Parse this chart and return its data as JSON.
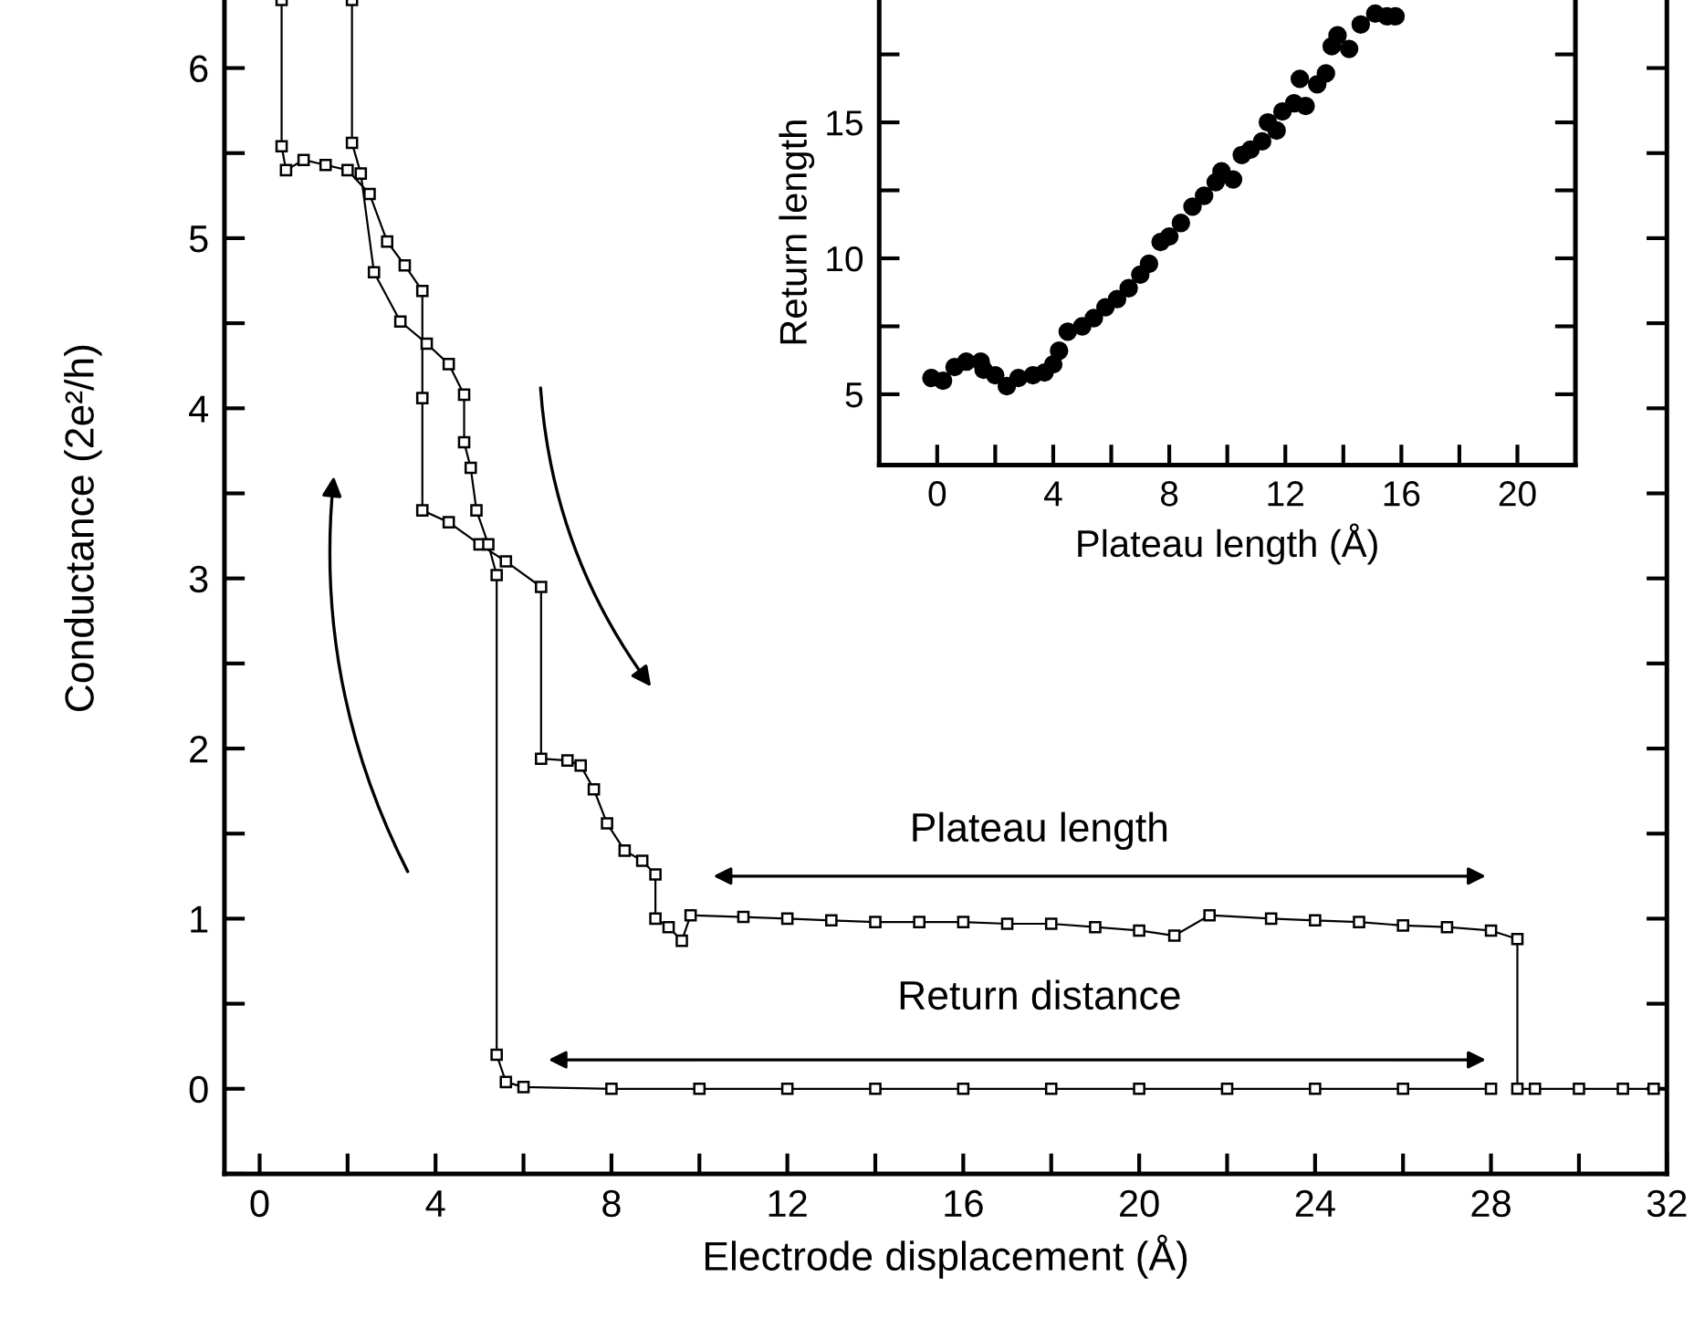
{
  "chart_data": [
    {
      "type": "line",
      "xlabel": "Electrode displacement (Å)",
      "ylabel": "Conductance (2e²/h)",
      "marker": "square",
      "line_style": "solid",
      "grid": false,
      "legend": false,
      "xlim": [
        -0.8,
        32
      ],
      "ylim": [
        -0.5,
        6.4
      ],
      "xticks": [
        0,
        {
          "value": 2,
          "label": null
        },
        4,
        {
          "value": 6,
          "label": null
        },
        8,
        {
          "value": 10,
          "label": null
        },
        12,
        {
          "value": 14,
          "label": null
        },
        16,
        {
          "value": 18,
          "label": null
        },
        20,
        {
          "value": 22,
          "label": null
        },
        24,
        {
          "value": 26,
          "label": null
        },
        28,
        {
          "value": 30,
          "label": null
        },
        32
      ],
      "yticks": [
        {
          "value": -0.5,
          "label": null
        },
        0,
        {
          "value": 0.5,
          "label": null
        },
        1,
        {
          "value": 1.5,
          "label": null
        },
        2,
        {
          "value": 2.5,
          "label": null
        },
        3,
        {
          "value": 3.5,
          "label": null
        },
        4,
        {
          "value": 4.5,
          "label": null
        },
        5,
        {
          "value": 5.5,
          "label": null
        },
        6
      ],
      "series": [
        {
          "color": "#000000",
          "x": [
            0.5,
            0.5,
            0.6,
            1.0,
            1.5,
            2.0,
            2.5,
            2.9,
            3.3,
            3.7,
            3.7,
            3.7,
            4.3,
            5.0,
            5.6,
            6.4,
            6.4,
            7.0,
            7.3,
            7.6,
            7.9,
            8.3,
            8.7,
            9.0,
            9.0,
            9.3,
            9.6,
            9.8,
            11,
            12,
            13,
            14,
            15,
            16,
            17,
            18,
            19,
            20,
            20.8,
            21.6,
            23,
            24,
            25,
            26,
            27,
            28,
            28.6,
            28.6,
            29,
            30,
            31,
            31.7
          ],
          "values": [
            6.4,
            5.54,
            5.4,
            5.46,
            5.43,
            5.4,
            5.26,
            4.98,
            4.84,
            4.69,
            4.06,
            3.4,
            3.33,
            3.2,
            3.1,
            2.95,
            1.94,
            1.93,
            1.9,
            1.76,
            1.56,
            1.4,
            1.34,
            1.26,
            1.0,
            0.95,
            0.87,
            1.02,
            1.01,
            1.0,
            0.99,
            0.98,
            0.98,
            0.98,
            0.97,
            0.97,
            0.95,
            0.93,
            0.9,
            1.02,
            1.0,
            0.99,
            0.98,
            0.96,
            0.95,
            0.93,
            0.88,
            0.0,
            0.0,
            0.0,
            0.0,
            0.0
          ]
        },
        {
          "color": "#000000",
          "x": [
            2.1,
            2.1,
            2.3,
            2.6,
            3.2,
            3.8,
            4.3,
            4.65,
            4.65,
            4.8,
            4.93,
            5.2,
            5.39,
            5.39,
            5.6,
            6,
            8,
            10,
            12,
            14,
            16,
            18,
            20,
            22,
            24,
            26,
            28
          ],
          "values": [
            6.4,
            5.56,
            5.38,
            4.8,
            4.51,
            4.38,
            4.26,
            4.08,
            3.8,
            3.65,
            3.4,
            3.2,
            3.02,
            0.2,
            0.04,
            0.01,
            0.0,
            0.0,
            0.0,
            0.0,
            0.0,
            0.0,
            0.0,
            0.0,
            0.0,
            0.0,
            0.0
          ]
        }
      ],
      "annotations": [
        "Plateau length",
        "Return distance"
      ]
    },
    {
      "type": "scatter",
      "xlabel": "Plateau length (Å)",
      "ylabel": "Return length",
      "marker": "circle",
      "grid": false,
      "legend": false,
      "xlim": [
        -2,
        22
      ],
      "ylim": [
        2.4,
        19.5
      ],
      "xticks": [
        0,
        {
          "value": 2,
          "label": null
        },
        4,
        {
          "value": 6,
          "label": null
        },
        8,
        {
          "value": 10,
          "label": null
        },
        12,
        {
          "value": 14,
          "label": null
        },
        16,
        {
          "value": 18,
          "label": null
        },
        20
      ],
      "yticks": [
        5,
        {
          "value": 7.5,
          "label": null
        },
        10,
        {
          "value": 12.5,
          "label": null
        },
        15,
        {
          "value": 17.5,
          "label": null
        }
      ],
      "series": [
        {
          "color": "#000000",
          "x": [
            -0.2,
            0.2,
            0.6,
            1.0,
            1.5,
            1.6,
            2.0,
            2.4,
            2.8,
            3.3,
            3.7,
            4.0,
            4.2,
            4.5,
            5.0,
            5.4,
            5.8,
            6.2,
            6.6,
            7.0,
            7.3,
            7.7,
            8.0,
            8.4,
            8.8,
            9.2,
            9.6,
            9.8,
            10.2,
            10.5,
            10.8,
            11.2,
            11.4,
            11.7,
            11.9,
            12.3,
            12.7,
            12.5,
            13.1,
            13.4,
            13.6,
            13.8,
            14.2,
            14.6,
            15.1,
            15.5,
            15.8
          ],
          "values": [
            5.6,
            5.5,
            6.0,
            6.2,
            6.2,
            5.9,
            5.7,
            5.3,
            5.6,
            5.7,
            5.8,
            6.1,
            6.6,
            7.3,
            7.5,
            7.8,
            8.2,
            8.5,
            8.9,
            9.4,
            9.8,
            10.6,
            10.8,
            11.3,
            11.9,
            12.3,
            12.8,
            13.2,
            12.9,
            13.8,
            14.0,
            14.3,
            15.0,
            14.7,
            15.4,
            15.7,
            15.6,
            16.6,
            16.4,
            16.8,
            17.8,
            18.2,
            17.7,
            18.6,
            19.0,
            18.9,
            18.9
          ]
        }
      ]
    }
  ]
}
